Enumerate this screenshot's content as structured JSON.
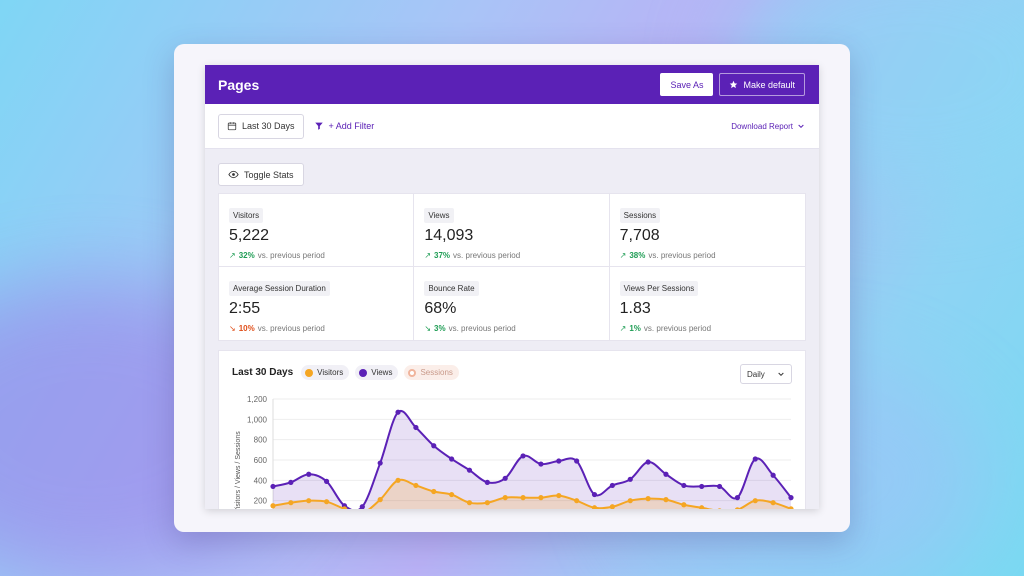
{
  "page": {
    "title": "Pages"
  },
  "header": {
    "save_as": "Save As",
    "make_default": "Make default"
  },
  "toolbar": {
    "date_range": "Last 30 Days",
    "add_filter": "+ Add Filter",
    "download": "Download Report"
  },
  "toggle_stats": "Toggle Stats",
  "stats": [
    {
      "label": "Visitors",
      "value": "5,222",
      "change": "32%",
      "direction": "up",
      "suffix": "vs. previous period"
    },
    {
      "label": "Views",
      "value": "14,093",
      "change": "37%",
      "direction": "up",
      "suffix": "vs. previous period"
    },
    {
      "label": "Sessions",
      "value": "7,708",
      "change": "38%",
      "direction": "up",
      "suffix": "vs. previous period"
    },
    {
      "label": "Average Session Duration",
      "value": "2:55",
      "change": "10%",
      "direction": "down",
      "suffix": "vs. previous period"
    },
    {
      "label": "Bounce Rate",
      "value": "68%",
      "change": "3%",
      "direction": "down",
      "suffix": "vs. previous period"
    },
    {
      "label": "Views Per Sessions",
      "value": "1.83",
      "change": "1%",
      "direction": "up",
      "suffix": "vs. previous period"
    }
  ],
  "chart": {
    "title": "Last 30 Days",
    "legend": [
      {
        "name": "Visitors",
        "color": "#f5a623",
        "active": true
      },
      {
        "name": "Views",
        "color": "#5b21b6",
        "active": true
      },
      {
        "name": "Sessions",
        "color": "#f0b49c",
        "active": false
      }
    ],
    "interval": "Daily"
  },
  "chart_data": {
    "type": "area",
    "ylabel": "Visitors / Views / Sessions",
    "ylim": [
      0,
      1200
    ],
    "yticks": [
      200,
      400,
      600,
      800,
      1000,
      1200
    ],
    "series": [
      {
        "name": "Views",
        "color": "#5b21b6",
        "values": [
          340,
          380,
          460,
          390,
          150,
          140,
          570,
          1070,
          920,
          740,
          610,
          500,
          380,
          420,
          640,
          560,
          590,
          590,
          260,
          350,
          410,
          580,
          460,
          350,
          340,
          340,
          230,
          610,
          450,
          230
        ]
      },
      {
        "name": "Visitors",
        "color": "#f5a623",
        "values": [
          150,
          180,
          200,
          190,
          120,
          80,
          210,
          400,
          350,
          290,
          260,
          180,
          180,
          230,
          230,
          230,
          250,
          200,
          130,
          140,
          200,
          220,
          210,
          160,
          130,
          100,
          110,
          200,
          180,
          120
        ]
      }
    ]
  }
}
